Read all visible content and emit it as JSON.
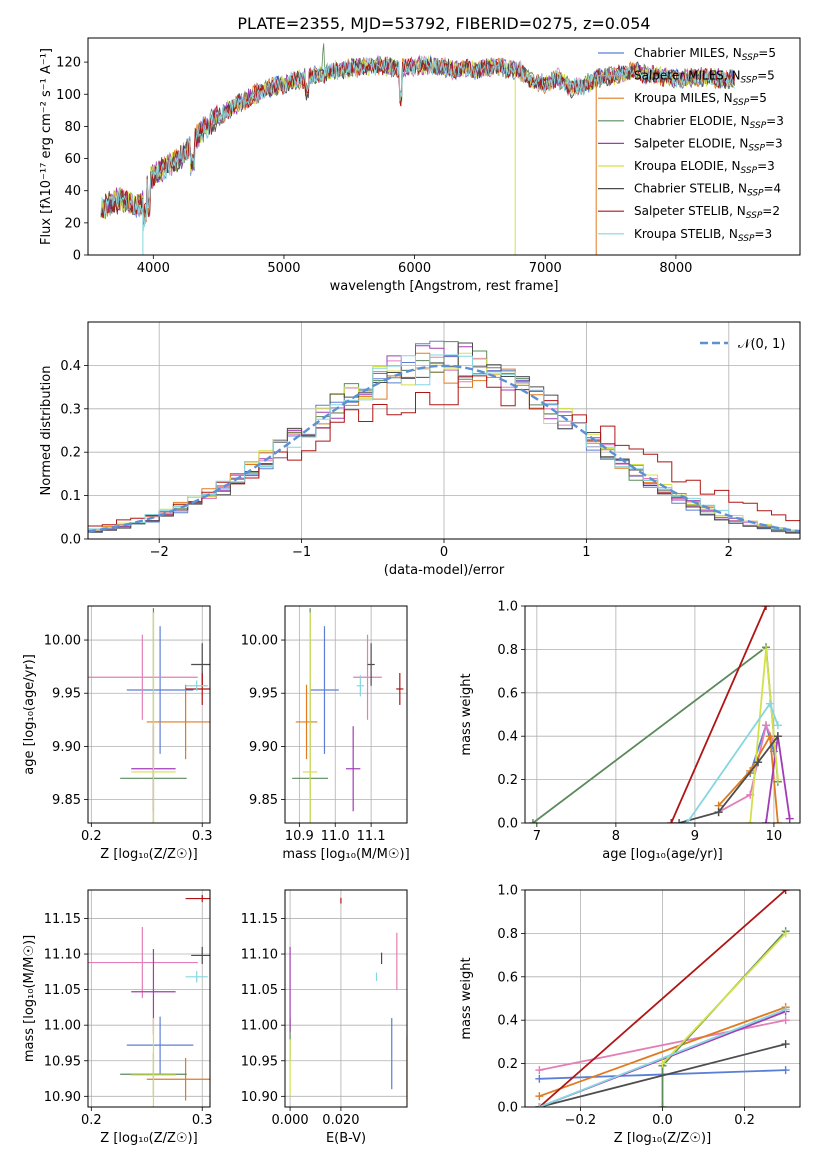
{
  "figure": {
    "title": "PLATE=2355, MJD=53792, FIBERID=0275, z=0.054"
  },
  "colors": {
    "Chabrier MILES": "#5b7fd6",
    "Salpeter MILES": "#e37fb8",
    "Kroupa MILES": "#e07b21",
    "Chabrier ELODIE": "#5c8a5c",
    "Salpeter ELODIE": "#a23cb5",
    "Kroupa ELODIE": "#d4e04a",
    "Chabrier STELIB": "#4d4d4d",
    "Salpeter STELIB": "#b01515",
    "Kroupa STELIB": "#86d6e0",
    "normal_curve": "#5b8fd6",
    "grid": "#b0b0b0"
  },
  "chart_data": [
    {
      "id": "spectrum",
      "type": "line",
      "title": "PLATE=2355, MJD=53792, FIBERID=0275, z=0.054",
      "xlabel": "wavelength [Angstrom, rest frame]",
      "ylabel": "Flux [fλ10⁻¹⁷ erg cm⁻² s⁻¹ A⁻¹]",
      "xlim": [
        3500,
        8950
      ],
      "ylim": [
        0,
        135
      ],
      "xticks": [
        4000,
        5000,
        6000,
        7000,
        8000
      ],
      "yticks": [
        0,
        20,
        40,
        60,
        80,
        100,
        120
      ],
      "grid": false,
      "legend_position": "top-right",
      "legend": [
        {
          "name": "Chabrier MILES",
          "nssp": "5"
        },
        {
          "name": "Salpeter MILES",
          "nssp": "5"
        },
        {
          "name": "Kroupa MILES",
          "nssp": "5"
        },
        {
          "name": "Chabrier ELODIE",
          "nssp": "3"
        },
        {
          "name": "Salpeter ELODIE",
          "nssp": "3"
        },
        {
          "name": "Kroupa ELODIE",
          "nssp": "3"
        },
        {
          "name": "Chabrier STELIB",
          "nssp": "4"
        },
        {
          "name": "Salpeter STELIB",
          "nssp": "2"
        },
        {
          "name": "Kroupa STELIB",
          "nssp": "3"
        }
      ],
      "continuum": {
        "x": [
          3600,
          3700,
          3800,
          3900,
          3950,
          4000,
          4100,
          4200,
          4300,
          4400,
          4500,
          4600,
          4700,
          4800,
          4900,
          5000,
          5100,
          5200,
          5300,
          5400,
          5500,
          5600,
          5700,
          5800,
          5900,
          6000,
          6100,
          6200,
          6300,
          6400,
          6500,
          6600,
          6700,
          6800,
          6900,
          7000,
          7100,
          7200,
          7300,
          7400,
          7500,
          7600,
          7700,
          7800,
          7900,
          8000,
          8100,
          8200,
          8300,
          8400,
          8450
        ],
        "y": [
          28,
          34,
          33,
          30,
          42,
          50,
          55,
          60,
          70,
          80,
          86,
          92,
          96,
          101,
          104,
          106,
          109,
          111,
          113,
          115,
          116,
          117,
          118,
          117,
          116,
          117,
          118,
          117,
          115,
          116,
          115,
          117,
          116,
          115,
          108,
          106,
          110,
          104,
          106,
          110,
          111,
          113,
          114,
          112,
          111,
          110,
          110,
          111,
          110,
          109,
          110
        ]
      },
      "plot_until": 8450,
      "dropouts": [
        {
          "x": 3920,
          "y": 0,
          "series": "Kroupa STELIB"
        },
        {
          "x": 6770,
          "y": 0,
          "series": "Kroupa ELODIE"
        },
        {
          "x": 7390,
          "y": 0,
          "series": "Kroupa MILES"
        }
      ]
    },
    {
      "id": "residuals",
      "type": "histogram",
      "xlabel": "(data-model)/error",
      "ylabel": "Normed distribution",
      "xlim": [
        -2.5,
        2.5
      ],
      "ylim": [
        0,
        0.5
      ],
      "xticks": [
        -2,
        -1,
        0,
        1,
        2
      ],
      "yticks": [
        0.0,
        0.1,
        0.2,
        0.3,
        0.4
      ],
      "bin_width": 0.1,
      "grid": true,
      "legend_position": "top-right",
      "legend": [
        "𝒩(0, 1)"
      ],
      "reference_curve": {
        "type": "normal",
        "mean": 0,
        "sigma": 1
      }
    },
    {
      "id": "age-vs-Z",
      "type": "scatter",
      "xlabel": "Z [log₁₀(Z/Z☉)]",
      "ylabel": "age  [log₁₀(age/yr)]",
      "xlim": [
        0.197,
        0.307
      ],
      "ylim": [
        9.828,
        10.032
      ],
      "xticks": [
        0.2,
        0.3
      ],
      "yticks": [
        9.85,
        9.9,
        9.95,
        10.0
      ],
      "grid": true,
      "points": [
        {
          "series": "Chabrier MILES",
          "x": 0.262,
          "y": 9.953,
          "xerr": 0.03,
          "yerr": 0.06
        },
        {
          "series": "Salpeter MILES",
          "x": 0.246,
          "y": 9.965,
          "xerr": 0.05,
          "yerr": 0.04
        },
        {
          "series": "Kroupa MILES",
          "x": 0.285,
          "y": 9.923,
          "xerr": 0.035,
          "yerr": 0.035
        },
        {
          "series": "Chabrier ELODIE",
          "x": 0.256,
          "y": 9.87,
          "xerr": 0.03,
          "yerr": 0.16
        },
        {
          "series": "Salpeter ELODIE",
          "x": 0.256,
          "y": 9.879,
          "xerr": 0.02,
          "yerr": 0.04
        },
        {
          "series": "Kroupa ELODIE",
          "x": 0.256,
          "y": 9.876,
          "xerr": 0.02,
          "yerr": 0.15
        },
        {
          "series": "Chabrier STELIB",
          "x": 0.3,
          "y": 9.977,
          "xerr": 0.01,
          "yerr": 0.02
        },
        {
          "series": "Salpeter STELIB",
          "x": 0.3,
          "y": 9.954,
          "xerr": 0.015,
          "yerr": 0.015
        },
        {
          "series": "Kroupa STELIB",
          "x": 0.295,
          "y": 9.957,
          "xerr": 0.01,
          "yerr": 0.005
        }
      ]
    },
    {
      "id": "age-vs-mass",
      "type": "scatter",
      "xlabel": "mass [log₁₀(M/M☉)]",
      "ylabel": "",
      "xlim": [
        10.86,
        11.2
      ],
      "ylim": [
        9.828,
        10.032
      ],
      "xticks": [
        10.9,
        11.0,
        11.1
      ],
      "yticks": [
        9.85,
        9.9,
        9.95,
        10.0
      ],
      "grid": true,
      "points": [
        {
          "series": "Chabrier MILES",
          "x": 10.97,
          "y": 9.953,
          "xerr": 0.04,
          "yerr": 0.06
        },
        {
          "series": "Salpeter MILES",
          "x": 11.09,
          "y": 9.965,
          "xerr": 0.04,
          "yerr": 0.04
        },
        {
          "series": "Kroupa MILES",
          "x": 10.92,
          "y": 9.923,
          "xerr": 0.03,
          "yerr": 0.035
        },
        {
          "series": "Chabrier ELODIE",
          "x": 10.93,
          "y": 9.87,
          "xerr": 0.05,
          "yerr": 0.16
        },
        {
          "series": "Salpeter ELODIE",
          "x": 11.05,
          "y": 9.879,
          "xerr": 0.02,
          "yerr": 0.04
        },
        {
          "series": "Kroupa ELODIE",
          "x": 10.93,
          "y": 9.876,
          "xerr": 0.02,
          "yerr": 0.15
        },
        {
          "series": "Chabrier STELIB",
          "x": 11.1,
          "y": 9.977,
          "xerr": 0.01,
          "yerr": 0.02
        },
        {
          "series": "Salpeter STELIB",
          "x": 11.18,
          "y": 9.954,
          "xerr": 0.01,
          "yerr": 0.015
        },
        {
          "series": "Kroupa STELIB",
          "x": 11.07,
          "y": 9.957,
          "xerr": 0.01,
          "yerr": 0.01
        }
      ]
    },
    {
      "id": "weight-vs-age",
      "type": "line",
      "xlabel": "age  [log₁₀(age/yr)]",
      "ylabel": "mass weight",
      "xlim": [
        6.85,
        10.33
      ],
      "ylim": [
        0,
        1.0
      ],
      "xticks": [
        7,
        8,
        9,
        10
      ],
      "yticks": [
        0.0,
        0.2,
        0.4,
        0.6,
        0.8,
        1.0
      ],
      "grid": true,
      "series": [
        {
          "name": "Chabrier MILES",
          "x": [
            9.7,
            9.9,
            10.0
          ],
          "y": [
            0.23,
            0.45,
            0.33
          ]
        },
        {
          "name": "Salpeter MILES",
          "x": [
            9.3,
            9.7,
            9.9,
            10.0
          ],
          "y": [
            0.05,
            0.13,
            0.45,
            0.37
          ]
        },
        {
          "name": "Kroupa MILES",
          "x": [
            9.3,
            9.7,
            9.95,
            10.05
          ],
          "y": [
            0.08,
            0.24,
            0.4,
            0.0
          ]
        },
        {
          "name": "Chabrier ELODIE",
          "x": [
            6.95,
            9.9,
            10.05
          ],
          "y": [
            0.0,
            0.81,
            0.19
          ]
        },
        {
          "name": "Salpeter ELODIE",
          "x": [
            9.9,
            10.05,
            10.2
          ],
          "y": [
            0.0,
            0.4,
            0.02
          ]
        },
        {
          "name": "Kroupa ELODIE",
          "x": [
            9.7,
            9.9,
            10.05
          ],
          "y": [
            0.0,
            0.8,
            0.2
          ]
        },
        {
          "name": "Chabrier STELIB",
          "x": [
            8.8,
            9.3,
            9.8,
            10.05
          ],
          "y": [
            0.0,
            0.05,
            0.28,
            0.4
          ]
        },
        {
          "name": "Salpeter STELIB",
          "x": [
            8.7,
            9.9
          ],
          "y": [
            0.0,
            1.0
          ]
        },
        {
          "name": "Kroupa STELIB",
          "x": [
            8.9,
            9.95,
            10.05
          ],
          "y": [
            0.0,
            0.55,
            0.45
          ]
        }
      ]
    },
    {
      "id": "mass-vs-Z",
      "type": "scatter",
      "xlabel": "Z [log₁₀(Z/Z☉)]",
      "ylabel": "mass [log₁₀(M/M☉)]",
      "xlim": [
        0.197,
        0.307
      ],
      "ylim": [
        10.885,
        11.19
      ],
      "xticks": [
        0.2,
        0.3
      ],
      "yticks": [
        10.9,
        10.95,
        11.0,
        11.05,
        11.1,
        11.15
      ],
      "grid": true,
      "points": [
        {
          "series": "Chabrier MILES",
          "x": 0.262,
          "y": 10.972,
          "xerr": 0.03,
          "yerr": 0.04
        },
        {
          "series": "Salpeter MILES",
          "x": 0.246,
          "y": 11.088,
          "xerr": 0.05,
          "yerr": 0.05
        },
        {
          "series": "Kroupa MILES",
          "x": 0.285,
          "y": 10.924,
          "xerr": 0.035,
          "yerr": 0.03
        },
        {
          "series": "Chabrier ELODIE",
          "x": 0.256,
          "y": 10.931,
          "xerr": 0.03,
          "yerr": 0.03
        },
        {
          "series": "Salpeter ELODIE",
          "x": 0.256,
          "y": 11.047,
          "xerr": 0.02,
          "yerr": 0.06
        },
        {
          "series": "Kroupa ELODIE",
          "x": 0.256,
          "y": 10.93,
          "xerr": 0.02,
          "yerr": 0.08
        },
        {
          "series": "Chabrier STELIB",
          "x": 0.3,
          "y": 11.098,
          "xerr": 0.01,
          "yerr": 0.012
        },
        {
          "series": "Salpeter STELIB",
          "x": 0.3,
          "y": 11.178,
          "xerr": 0.015,
          "yerr": 0.005
        },
        {
          "series": "Kroupa STELIB",
          "x": 0.295,
          "y": 11.068,
          "xerr": 0.01,
          "yerr": 0.008
        }
      ]
    },
    {
      "id": "mass-vs-ebv",
      "type": "scatter",
      "xlabel": "E(B-V)",
      "ylabel": "",
      "xlim": [
        -0.002,
        0.046
      ],
      "ylim": [
        10.885,
        11.19
      ],
      "xticks": [
        0.0,
        0.02
      ],
      "yticks": [
        10.9,
        10.95,
        11.0,
        11.05,
        11.1,
        11.15
      ],
      "grid": true,
      "points": [
        {
          "series": "Chabrier MILES",
          "x": 0.04,
          "y": 10.96,
          "xerr": 0.0,
          "yerr": 0.05
        },
        {
          "series": "Salpeter MILES",
          "x": 0.042,
          "y": 11.09,
          "xerr": 0.0,
          "yerr": 0.04
        },
        {
          "series": "Kroupa MILES",
          "x": 0.046,
          "y": 10.94,
          "xerr": 0.0,
          "yerr": 0.045
        },
        {
          "series": "Chabrier ELODIE",
          "x": 0.0,
          "y": 10.98,
          "xerr": 0.0,
          "yerr": 0.03
        },
        {
          "series": "Salpeter ELODIE",
          "x": 0.0,
          "y": 11.05,
          "xerr": 0.0,
          "yerr": 0.06
        },
        {
          "series": "Kroupa ELODIE",
          "x": 0.0,
          "y": 10.94,
          "xerr": 0.0,
          "yerr": 0.04
        },
        {
          "series": "Chabrier STELIB",
          "x": 0.036,
          "y": 11.094,
          "xerr": 0.0,
          "yerr": 0.008
        },
        {
          "series": "Salpeter STELIB",
          "x": 0.02,
          "y": 11.175,
          "xerr": 0.0,
          "yerr": 0.004
        },
        {
          "series": "Kroupa STELIB",
          "x": 0.034,
          "y": 11.068,
          "xerr": 0.0,
          "yerr": 0.006
        }
      ]
    },
    {
      "id": "weight-vs-Z",
      "type": "line",
      "xlabel": "Z [log₁₀(Z/Z☉)]",
      "ylabel": "mass weight",
      "xlim": [
        -0.335,
        0.335
      ],
      "ylim": [
        0,
        1.0
      ],
      "xticks": [
        -0.2,
        0.0,
        0.2
      ],
      "yticks": [
        0.0,
        0.2,
        0.4,
        0.6,
        0.8,
        1.0
      ],
      "grid": true,
      "series": [
        {
          "name": "Chabrier MILES",
          "x": [
            -0.3,
            0.3
          ],
          "y": [
            0.13,
            0.17
          ]
        },
        {
          "name": "Salpeter MILES",
          "x": [
            -0.3,
            0.3
          ],
          "y": [
            0.17,
            0.4
          ]
        },
        {
          "name": "Kroupa MILES",
          "x": [
            -0.3,
            0.3
          ],
          "y": [
            0.05,
            0.46
          ]
        },
        {
          "name": "Chabrier ELODIE",
          "x": [
            0.0,
            0.0,
            0.3
          ],
          "y": [
            0.0,
            0.19,
            0.81
          ]
        },
        {
          "name": "Salpeter ELODIE",
          "x": [
            -0.3,
            0.3
          ],
          "y": [
            0.0,
            0.44
          ]
        },
        {
          "name": "Kroupa ELODIE",
          "x": [
            0.0,
            0.3
          ],
          "y": [
            0.2,
            0.8
          ]
        },
        {
          "name": "Chabrier STELIB",
          "x": [
            -0.3,
            0.3
          ],
          "y": [
            0.0,
            0.29
          ]
        },
        {
          "name": "Salpeter STELIB",
          "x": [
            -0.3,
            0.3
          ],
          "y": [
            0.0,
            1.0
          ]
        },
        {
          "name": "Kroupa STELIB",
          "x": [
            -0.3,
            0.3
          ],
          "y": [
            0.0,
            0.45
          ]
        }
      ]
    }
  ]
}
